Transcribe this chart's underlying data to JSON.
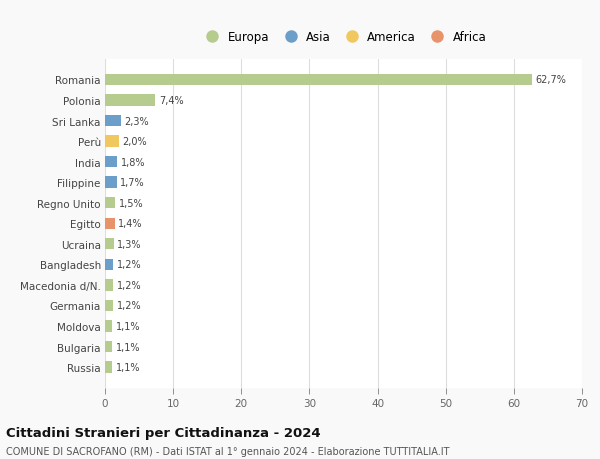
{
  "categories": [
    "Romania",
    "Polonia",
    "Sri Lanka",
    "Perù",
    "India",
    "Filippine",
    "Regno Unito",
    "Egitto",
    "Ucraina",
    "Bangladesh",
    "Macedonia d/N.",
    "Germania",
    "Moldova",
    "Bulgaria",
    "Russia"
  ],
  "values": [
    62.7,
    7.4,
    2.3,
    2.0,
    1.8,
    1.7,
    1.5,
    1.4,
    1.3,
    1.2,
    1.2,
    1.2,
    1.1,
    1.1,
    1.1
  ],
  "labels": [
    "62,7%",
    "7,4%",
    "2,3%",
    "2,0%",
    "1,8%",
    "1,7%",
    "1,5%",
    "1,4%",
    "1,3%",
    "1,2%",
    "1,2%",
    "1,2%",
    "1,1%",
    "1,1%",
    "1,1%"
  ],
  "continents": [
    "Europa",
    "Europa",
    "Asia",
    "America",
    "Asia",
    "Asia",
    "Europa",
    "Africa",
    "Europa",
    "Asia",
    "Europa",
    "Europa",
    "Europa",
    "Europa",
    "Europa"
  ],
  "continent_colors": {
    "Europa": "#b5cc8e",
    "Asia": "#6b9fc9",
    "America": "#f0c85f",
    "Africa": "#e8936a"
  },
  "legend_order": [
    "Europa",
    "Asia",
    "America",
    "Africa"
  ],
  "title": "Cittadini Stranieri per Cittadinanza - 2024",
  "subtitle": "COMUNE DI SACROFANO (RM) - Dati ISTAT al 1° gennaio 2024 - Elaborazione TUTTITALIA.IT",
  "xlim": [
    0,
    70
  ],
  "xticks": [
    0,
    10,
    20,
    30,
    40,
    50,
    60,
    70
  ],
  "background_color": "#f9f9f9",
  "bar_background": "#ffffff",
  "grid_color": "#dddddd",
  "bar_height": 0.55
}
